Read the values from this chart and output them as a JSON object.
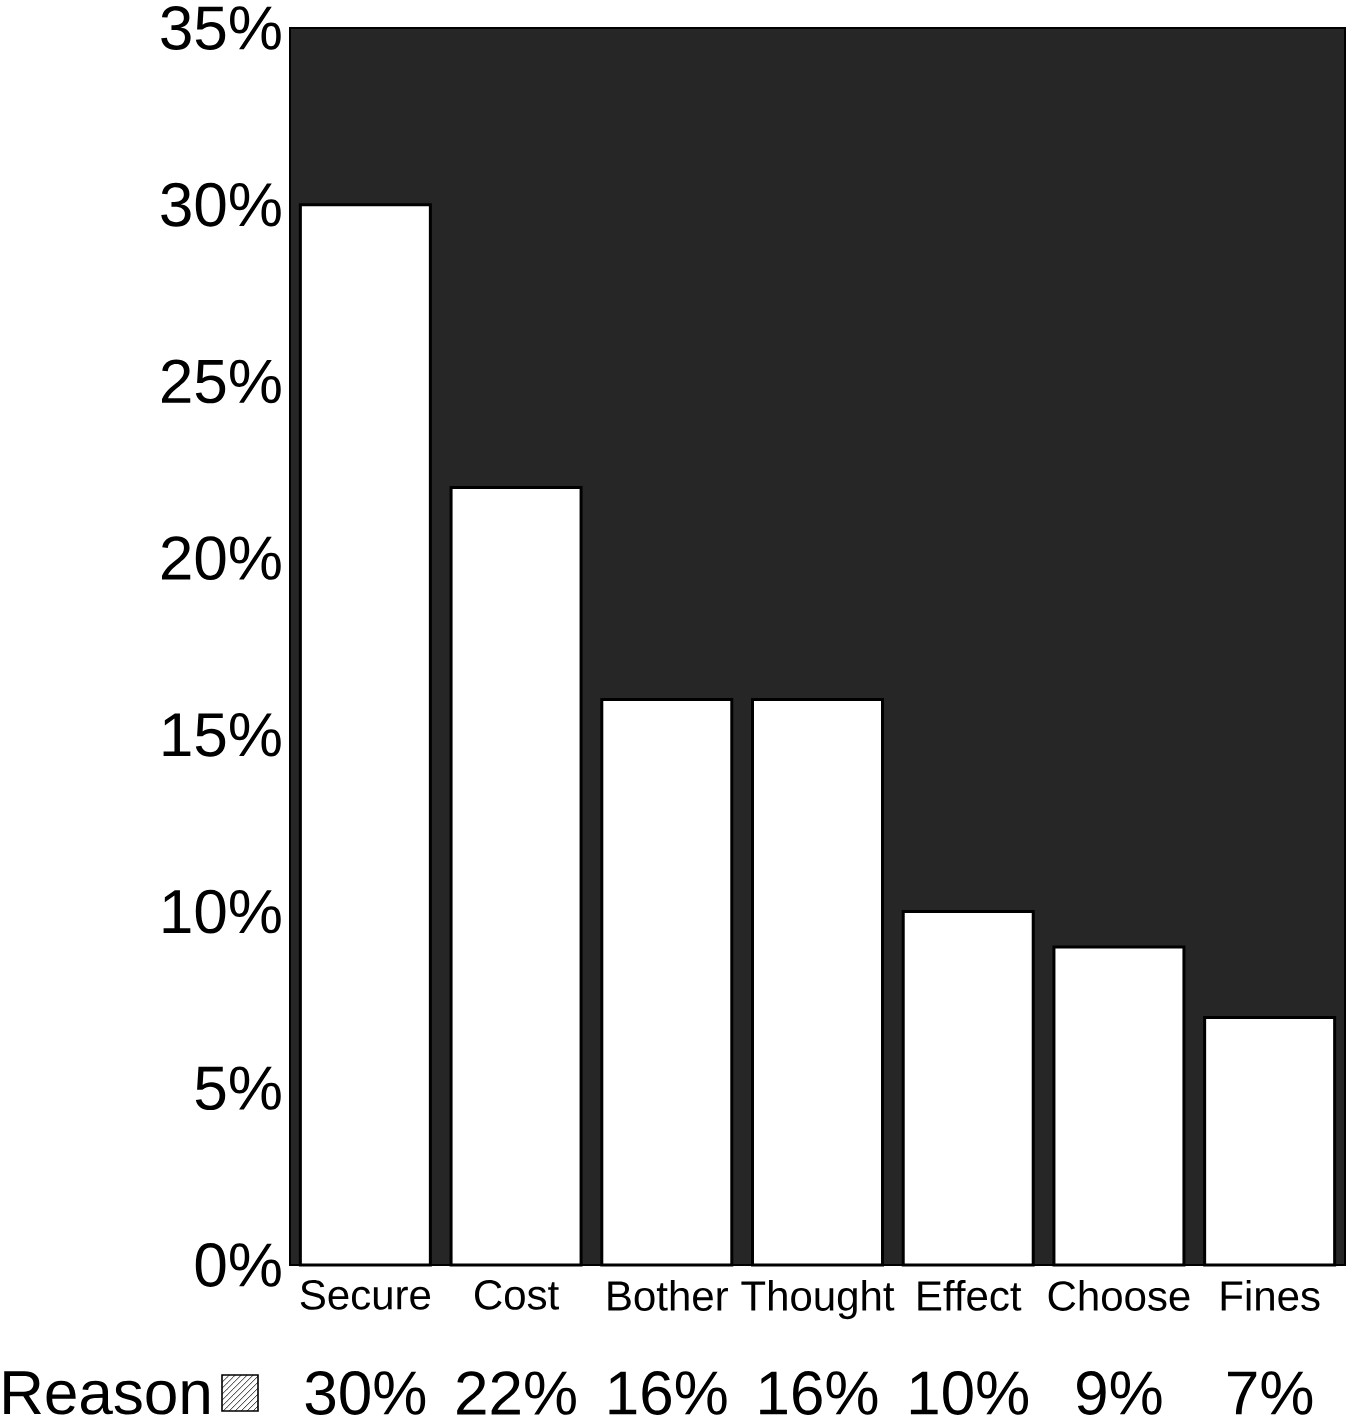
{
  "chart_data": {
    "type": "bar",
    "categories": [
      "Secure",
      "Cost",
      "Bother",
      "Thought",
      "Effect",
      "Choose",
      "Fines"
    ],
    "series": [
      {
        "name": "Reason",
        "color": "#ffffff",
        "values": [
          30,
          22,
          16,
          16,
          10,
          9,
          7
        ],
        "value_labels": [
          "30%",
          "22%",
          "16%",
          "16%",
          "10%",
          "9%",
          "7%"
        ]
      }
    ],
    "ylim": [
      0,
      35
    ],
    "yticks": [
      {
        "value": 0,
        "label": "0%"
      },
      {
        "value": 5,
        "label": "5%"
      },
      {
        "value": 10,
        "label": "10%"
      },
      {
        "value": 15,
        "label": "15%"
      },
      {
        "value": 20,
        "label": "20%"
      },
      {
        "value": 25,
        "label": "25%"
      },
      {
        "value": 30,
        "label": "30%"
      },
      {
        "value": 35,
        "label": "35%"
      }
    ],
    "legend": "bottom left"
  }
}
